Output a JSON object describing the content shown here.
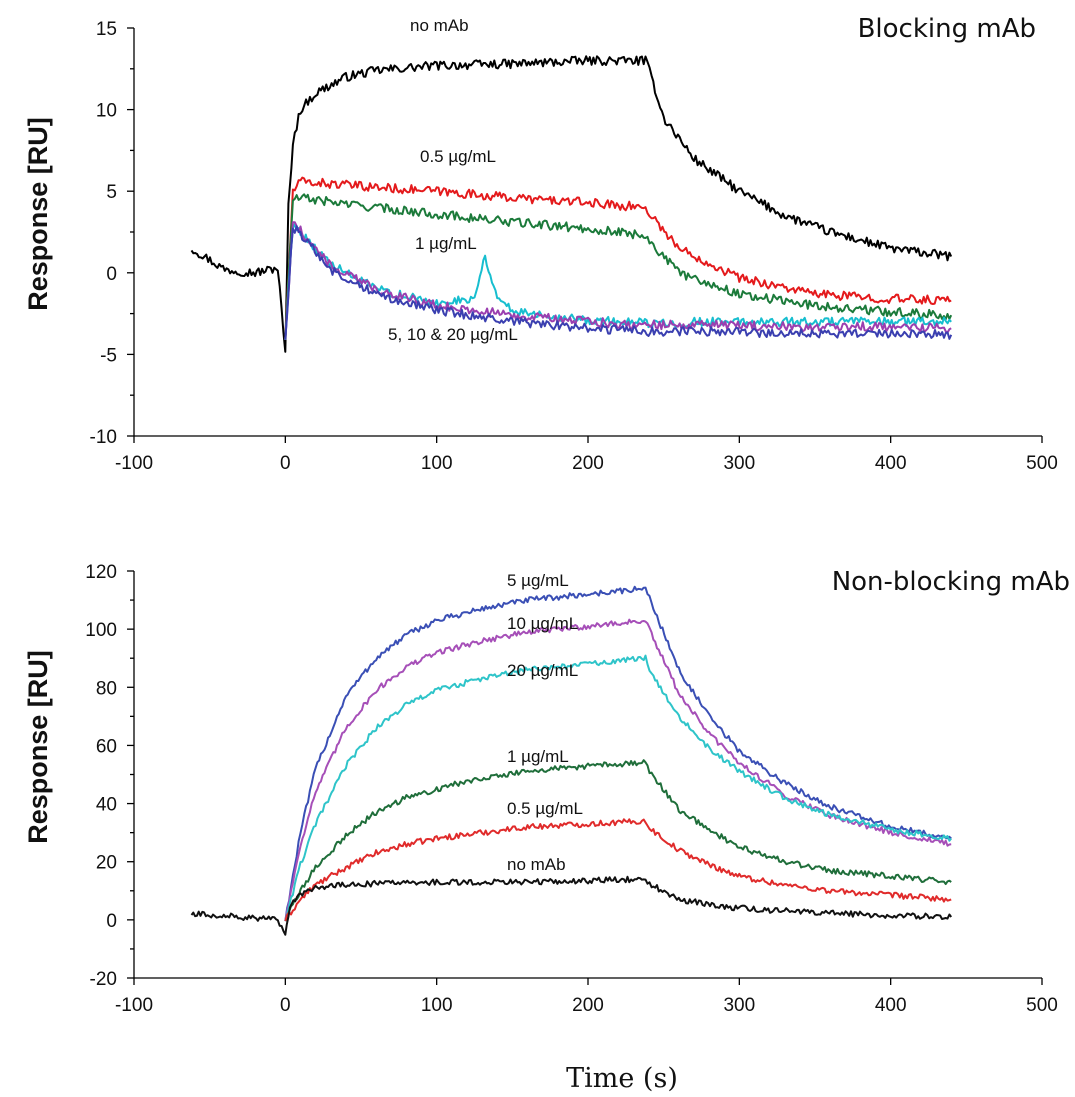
{
  "x_axis_title": "Time (s)",
  "chart_data": [
    {
      "type": "line",
      "title": "Blocking mAb",
      "xlabel": "",
      "ylabel": "Response [RU]",
      "xlim": [
        -100,
        500
      ],
      "ylim": [
        -10,
        15
      ],
      "xticks": [
        "-100",
        "0",
        "100",
        "200",
        "300",
        "400",
        "500"
      ],
      "yticks": [
        "15",
        "10",
        "5",
        "0",
        "-5",
        "-10"
      ],
      "annotations": [
        "no mAb",
        "0.5 µg/mL",
        "1 µg/mL",
        "5, 10 & 20 µg/mL"
      ],
      "series": [
        {
          "color": "#000000",
          "x": [
            -62,
            -40,
            -20,
            -5,
            0,
            2,
            5,
            10,
            20,
            40,
            60,
            100,
            150,
            200,
            238,
            242,
            250,
            270,
            300,
            330,
            360,
            400,
            440
          ],
          "y": [
            1.5,
            0.2,
            0,
            0.3,
            -5,
            4,
            8,
            10,
            11,
            12,
            12.4,
            12.7,
            12.8,
            13,
            13,
            12,
            9.5,
            7,
            5,
            3.5,
            2.5,
            1.5,
            1
          ]
        },
        {
          "color": "#e41a1c",
          "x": [
            0,
            5,
            10,
            50,
            100,
            150,
            200,
            238,
            242,
            260,
            300,
            350,
            400,
            440
          ],
          "y": [
            -4,
            5,
            5.6,
            5.3,
            5,
            4.6,
            4.3,
            4,
            3.5,
            1.5,
            -0.3,
            -1.3,
            -1.6,
            -1.7
          ]
        },
        {
          "color": "#1b7a3a",
          "x": [
            0,
            5,
            10,
            50,
            100,
            150,
            200,
            238,
            242,
            260,
            300,
            350,
            400,
            440
          ],
          "y": [
            -4,
            4.5,
            4.6,
            4.1,
            3.6,
            3.1,
            2.7,
            2.3,
            1.8,
            0,
            -1.3,
            -2,
            -2.4,
            -2.6
          ]
        },
        {
          "color": "#17becf",
          "x": [
            0,
            5,
            10,
            30,
            60,
            100,
            125,
            132,
            140,
            150,
            200,
            240,
            280,
            330,
            390,
            440
          ],
          "y": [
            -4,
            3,
            2.5,
            0.5,
            -1,
            -1.9,
            -1.5,
            1,
            -1.5,
            -2.3,
            -2.9,
            -3.1,
            -3,
            -3,
            -3,
            -3
          ]
        },
        {
          "color": "#9b3fb0",
          "x": [
            0,
            5,
            10,
            30,
            60,
            100,
            150,
            200,
            240,
            280,
            330,
            390,
            440
          ],
          "y": [
            -4,
            3,
            2.6,
            0.4,
            -1,
            -2,
            -2.6,
            -3,
            -3.2,
            -3.2,
            -3.3,
            -3.3,
            -3.4
          ]
        },
        {
          "color": "#3a3fb0",
          "x": [
            0,
            5,
            10,
            30,
            60,
            100,
            150,
            200,
            240,
            280,
            330,
            390,
            440
          ],
          "y": [
            -4,
            2.8,
            2.4,
            0.2,
            -1.3,
            -2.3,
            -3,
            -3.4,
            -3.6,
            -3.6,
            -3.7,
            -3.7,
            -3.8
          ]
        }
      ]
    },
    {
      "type": "line",
      "title": "Non-blocking mAb",
      "xlabel": "",
      "ylabel": "Response [RU]",
      "xlim": [
        -100,
        500
      ],
      "ylim": [
        -20,
        120
      ],
      "xticks": [
        "-100",
        "0",
        "100",
        "200",
        "300",
        "400",
        "500"
      ],
      "yticks": [
        "120",
        "100",
        "80",
        "60",
        "40",
        "20",
        "0",
        "-20"
      ],
      "annotations": [
        "5 µg/mL",
        "10 µg/mL",
        "20 µg/mL",
        "1 µg/mL",
        "0.5 µg/mL",
        "no mAb"
      ],
      "series": [
        {
          "color": "#3a4fb5",
          "x": [
            0,
            10,
            20,
            40,
            60,
            80,
            100,
            130,
            160,
            200,
            238,
            242,
            260,
            280,
            300,
            330,
            360,
            400,
            440
          ],
          "y": [
            0,
            30,
            52,
            77,
            90,
            98,
            103,
            107,
            110,
            112,
            114,
            109,
            86,
            70,
            58,
            47,
            39,
            32,
            28
          ]
        },
        {
          "color": "#a64fb8",
          "x": [
            0,
            10,
            20,
            40,
            60,
            80,
            100,
            130,
            160,
            200,
            238,
            242,
            260,
            280,
            300,
            330,
            360,
            400,
            440
          ],
          "y": [
            0,
            26,
            44,
            66,
            79,
            87,
            92,
            96,
            99,
            101,
            103,
            98,
            78,
            64,
            54,
            43,
            36,
            30,
            26
          ]
        },
        {
          "color": "#2ec4c9",
          "x": [
            0,
            10,
            20,
            40,
            60,
            80,
            100,
            130,
            160,
            200,
            238,
            242,
            260,
            280,
            300,
            330,
            360,
            400,
            440
          ],
          "y": [
            0,
            19,
            33,
            53,
            66,
            74,
            79,
            83,
            86,
            88,
            90,
            85,
            70,
            59,
            51,
            42,
            36,
            31,
            28
          ]
        },
        {
          "color": "#1f6e3a",
          "x": [
            0,
            10,
            20,
            40,
            60,
            80,
            100,
            130,
            160,
            200,
            238,
            242,
            260,
            280,
            300,
            330,
            360,
            400,
            440
          ],
          "y": [
            0,
            10,
            18,
            29,
            37,
            42,
            45,
            49,
            51,
            53,
            54,
            50,
            38,
            31,
            25,
            20,
            17,
            15,
            13
          ]
        },
        {
          "color": "#e02b2b",
          "x": [
            0,
            10,
            20,
            40,
            60,
            80,
            100,
            130,
            160,
            200,
            238,
            242,
            260,
            280,
            300,
            330,
            360,
            400,
            440
          ],
          "y": [
            0,
            7,
            12,
            18,
            23,
            26,
            28,
            30,
            32,
            33,
            34,
            31,
            24,
            19,
            15,
            12,
            10,
            8.5,
            7
          ]
        },
        {
          "color": "#111111",
          "x": [
            -62,
            -30,
            -5,
            0,
            3,
            10,
            20,
            40,
            60,
            100,
            150,
            200,
            238,
            242,
            260,
            300,
            350,
            400,
            440
          ],
          "y": [
            2,
            1,
            0,
            -6,
            5,
            9,
            11,
            12,
            12.5,
            13,
            13,
            13.5,
            14,
            12,
            7,
            4,
            2.5,
            1.5,
            1
          ]
        }
      ]
    }
  ]
}
